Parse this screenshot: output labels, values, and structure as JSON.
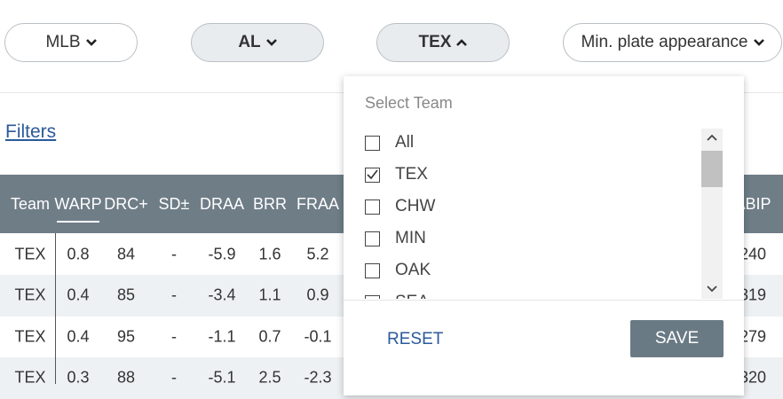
{
  "filters": [
    {
      "label": "MLB",
      "bold": false,
      "open": false
    },
    {
      "label": "AL",
      "bold": true,
      "open": false
    },
    {
      "label": "TEX",
      "bold": true,
      "open": true
    },
    {
      "label": "Min. plate appearance",
      "bold": false,
      "open": false
    }
  ],
  "filters_link": "Filters",
  "table": {
    "headers": [
      "Team",
      "WARP",
      "DRC+",
      "SD±",
      "DRAA",
      "BRR",
      "FRAA",
      "ABIP"
    ],
    "rows": [
      [
        "TEX",
        "0.8",
        "84",
        "-",
        "-5.9",
        "1.6",
        "5.2",
        "240"
      ],
      [
        "TEX",
        "0.4",
        "85",
        "-",
        "-3.4",
        "1.1",
        "0.9",
        "319"
      ],
      [
        "TEX",
        "0.4",
        "95",
        "-",
        "-1.1",
        "0.7",
        "-0.1",
        "279"
      ],
      [
        "TEX",
        "0.3",
        "88",
        "-",
        "-5.1",
        "2.5",
        "-2.3",
        "320"
      ]
    ]
  },
  "dropdown": {
    "title": "Select Team",
    "options": [
      {
        "label": "All",
        "checked": false
      },
      {
        "label": "TEX",
        "checked": true
      },
      {
        "label": "CHW",
        "checked": false
      },
      {
        "label": "MIN",
        "checked": false
      },
      {
        "label": "OAK",
        "checked": false
      },
      {
        "label": "SEA",
        "checked": false
      }
    ],
    "reset": "RESET",
    "save": "SAVE"
  }
}
